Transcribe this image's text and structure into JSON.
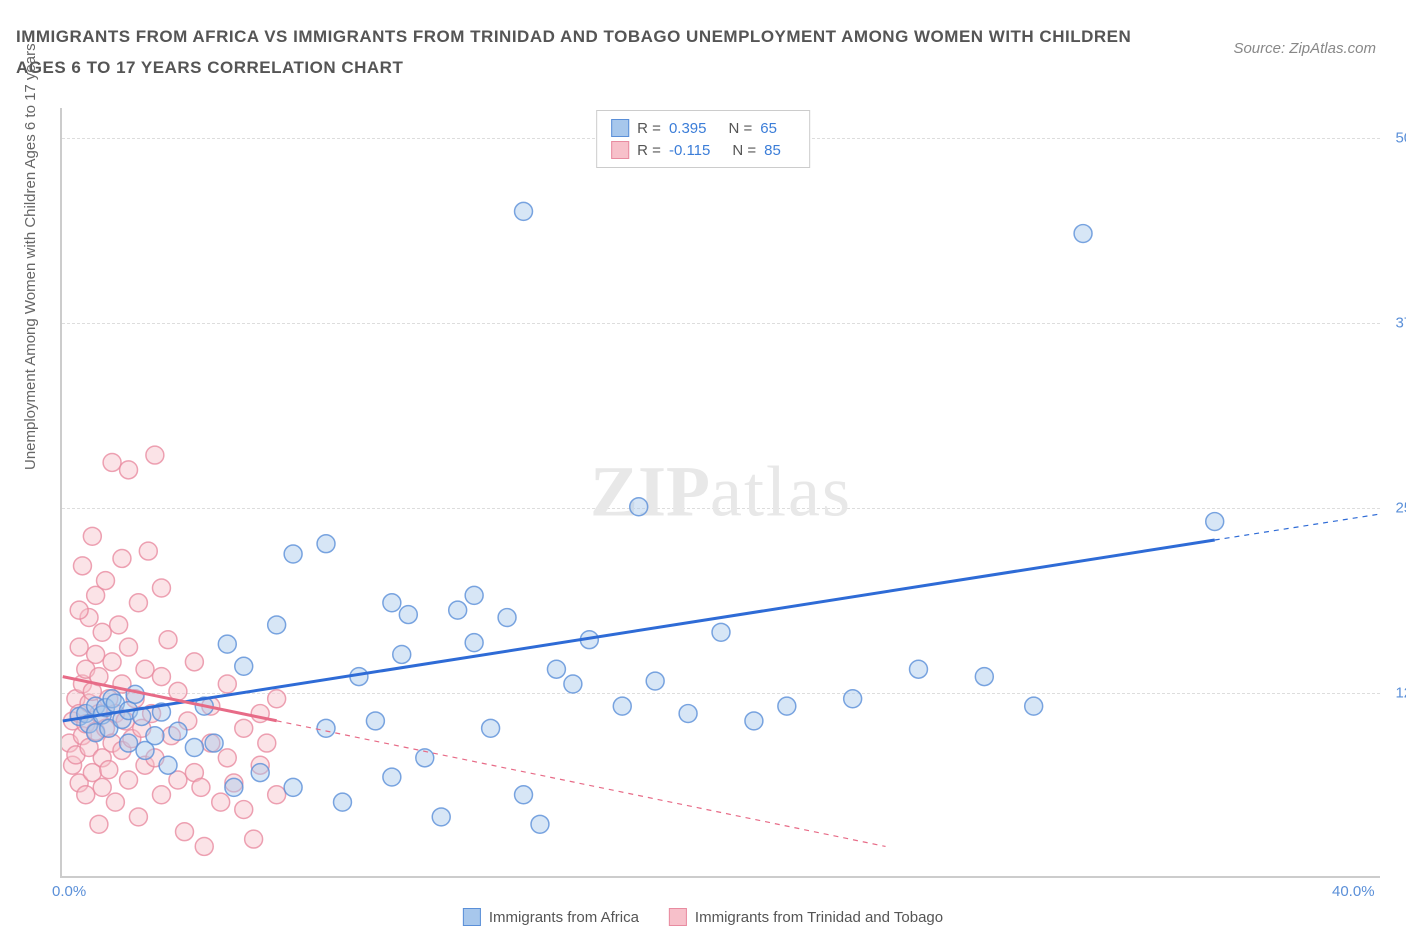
{
  "title": "IMMIGRANTS FROM AFRICA VS IMMIGRANTS FROM TRINIDAD AND TOBAGO UNEMPLOYMENT AMONG WOMEN WITH CHILDREN AGES 6 TO 17 YEARS CORRELATION CHART",
  "source": "Source: ZipAtlas.com",
  "yaxis_label": "Unemployment Among Women with Children Ages 6 to 17 years",
  "watermark": {
    "bold": "ZIP",
    "light": "atlas"
  },
  "chart": {
    "type": "scatter",
    "background_color": "#ffffff",
    "grid_color": "#dddddd",
    "axis_color": "#cccccc",
    "tick_color": "#5a8fd8",
    "label_color": "#666666",
    "title_color": "#555555",
    "title_fontsize": 17,
    "label_fontsize": 15,
    "tick_fontsize": 15,
    "xlim": [
      0,
      40
    ],
    "ylim": [
      0,
      52
    ],
    "yticks": [
      12.5,
      25.0,
      37.5,
      50.0
    ],
    "ytick_labels": [
      "12.5%",
      "25.0%",
      "37.5%",
      "50.0%"
    ],
    "xticks": [
      0,
      40
    ],
    "xtick_labels": [
      "0.0%",
      "40.0%"
    ],
    "marker_radius": 9,
    "marker_opacity": 0.45,
    "trendline_width": 3,
    "trendline_dash_width": 1.2
  },
  "series": [
    {
      "name": "Immigrants from Africa",
      "fill_color": "#a7c7ec",
      "stroke_color": "#5a8fd8",
      "line_color": "#2e6bd6",
      "R": 0.395,
      "N": 65,
      "trendline": {
        "x1": 0,
        "y1": 10.5,
        "x2": 40,
        "y2": 24.5,
        "solid_until_x": 35
      },
      "points": [
        [
          0.5,
          10.8
        ],
        [
          0.7,
          11.0
        ],
        [
          0.8,
          10.3
        ],
        [
          1.0,
          11.5
        ],
        [
          1.0,
          9.7
        ],
        [
          1.2,
          10.9
        ],
        [
          1.3,
          11.4
        ],
        [
          1.4,
          10.0
        ],
        [
          1.5,
          12.0
        ],
        [
          1.6,
          11.7
        ],
        [
          1.8,
          10.6
        ],
        [
          2.0,
          11.2
        ],
        [
          2.0,
          9.0
        ],
        [
          2.2,
          12.3
        ],
        [
          2.4,
          10.8
        ],
        [
          2.5,
          8.5
        ],
        [
          2.8,
          9.5
        ],
        [
          3.0,
          11.1
        ],
        [
          3.2,
          7.5
        ],
        [
          3.5,
          9.8
        ],
        [
          4.0,
          8.7
        ],
        [
          4.3,
          11.5
        ],
        [
          4.6,
          9.0
        ],
        [
          5.0,
          15.7
        ],
        [
          5.2,
          6.0
        ],
        [
          5.5,
          14.2
        ],
        [
          6.0,
          7.0
        ],
        [
          6.5,
          17.0
        ],
        [
          7.0,
          21.8
        ],
        [
          7.0,
          6.0
        ],
        [
          8.0,
          22.5
        ],
        [
          8.0,
          10.0
        ],
        [
          8.5,
          5.0
        ],
        [
          9.0,
          13.5
        ],
        [
          9.5,
          10.5
        ],
        [
          10.0,
          18.5
        ],
        [
          10.3,
          15.0
        ],
        [
          10.5,
          17.7
        ],
        [
          11.0,
          8.0
        ],
        [
          11.5,
          4.0
        ],
        [
          12.0,
          18.0
        ],
        [
          12.5,
          19.0
        ],
        [
          12.5,
          15.8
        ],
        [
          13.0,
          10.0
        ],
        [
          13.5,
          17.5
        ],
        [
          14.0,
          5.5
        ],
        [
          14.5,
          3.5
        ],
        [
          15.0,
          14.0
        ],
        [
          15.5,
          13.0
        ],
        [
          16.0,
          16.0
        ],
        [
          17.0,
          11.5
        ],
        [
          17.5,
          25.0
        ],
        [
          18.0,
          13.2
        ],
        [
          19.0,
          11.0
        ],
        [
          20.0,
          16.5
        ],
        [
          21.0,
          10.5
        ],
        [
          22.0,
          11.5
        ],
        [
          24.0,
          12.0
        ],
        [
          26.0,
          14.0
        ],
        [
          28.0,
          13.5
        ],
        [
          29.5,
          11.5
        ],
        [
          31.0,
          43.5
        ],
        [
          35.0,
          24.0
        ],
        [
          14.0,
          45.0
        ],
        [
          10.0,
          6.7
        ]
      ]
    },
    {
      "name": "Immigrants from Trinidad and Tobago",
      "fill_color": "#f7c0ca",
      "stroke_color": "#e88ba0",
      "line_color": "#e76b87",
      "R": -0.115,
      "N": 85,
      "trendline": {
        "x1": 0,
        "y1": 13.5,
        "x2": 25,
        "y2": 2.0,
        "solid_until_x": 6.5
      },
      "points": [
        [
          0.2,
          9.0
        ],
        [
          0.3,
          10.5
        ],
        [
          0.3,
          7.5
        ],
        [
          0.4,
          12.0
        ],
        [
          0.4,
          8.2
        ],
        [
          0.5,
          15.5
        ],
        [
          0.5,
          11.0
        ],
        [
          0.5,
          6.3
        ],
        [
          0.6,
          13.0
        ],
        [
          0.6,
          9.5
        ],
        [
          0.6,
          21.0
        ],
        [
          0.7,
          10.3
        ],
        [
          0.7,
          14.0
        ],
        [
          0.7,
          5.5
        ],
        [
          0.8,
          8.7
        ],
        [
          0.8,
          11.7
        ],
        [
          0.8,
          17.5
        ],
        [
          0.9,
          23.0
        ],
        [
          0.9,
          7.0
        ],
        [
          0.9,
          12.5
        ],
        [
          1.0,
          15.0
        ],
        [
          1.0,
          9.8
        ],
        [
          1.0,
          19.0
        ],
        [
          1.1,
          11.0
        ],
        [
          1.1,
          3.5
        ],
        [
          1.1,
          13.5
        ],
        [
          1.2,
          8.0
        ],
        [
          1.2,
          16.5
        ],
        [
          1.2,
          6.0
        ],
        [
          1.3,
          10.0
        ],
        [
          1.3,
          20.0
        ],
        [
          1.4,
          12.0
        ],
        [
          1.4,
          7.2
        ],
        [
          1.5,
          14.5
        ],
        [
          1.5,
          9.0
        ],
        [
          1.5,
          28.0
        ],
        [
          1.6,
          11.0
        ],
        [
          1.6,
          5.0
        ],
        [
          1.7,
          17.0
        ],
        [
          1.8,
          8.5
        ],
        [
          1.8,
          13.0
        ],
        [
          1.9,
          10.5
        ],
        [
          2.0,
          15.5
        ],
        [
          2.0,
          6.5
        ],
        [
          2.0,
          27.5
        ],
        [
          2.1,
          9.3
        ],
        [
          2.2,
          12.0
        ],
        [
          2.3,
          18.5
        ],
        [
          2.3,
          4.0
        ],
        [
          2.4,
          10.0
        ],
        [
          2.5,
          14.0
        ],
        [
          2.5,
          7.5
        ],
        [
          2.6,
          22.0
        ],
        [
          2.7,
          11.0
        ],
        [
          2.8,
          8.0
        ],
        [
          3.0,
          13.5
        ],
        [
          3.0,
          5.5
        ],
        [
          3.2,
          16.0
        ],
        [
          3.3,
          9.5
        ],
        [
          3.5,
          6.5
        ],
        [
          3.5,
          12.5
        ],
        [
          3.7,
          3.0
        ],
        [
          3.8,
          10.5
        ],
        [
          4.0,
          7.0
        ],
        [
          4.0,
          14.5
        ],
        [
          4.2,
          6.0
        ],
        [
          4.3,
          2.0
        ],
        [
          4.5,
          9.0
        ],
        [
          4.5,
          11.5
        ],
        [
          4.8,
          5.0
        ],
        [
          5.0,
          8.0
        ],
        [
          5.0,
          13.0
        ],
        [
          5.2,
          6.3
        ],
        [
          5.5,
          10.0
        ],
        [
          5.5,
          4.5
        ],
        [
          5.8,
          2.5
        ],
        [
          6.0,
          11.0
        ],
        [
          6.0,
          7.5
        ],
        [
          6.2,
          9.0
        ],
        [
          6.5,
          5.5
        ],
        [
          6.5,
          12.0
        ],
        [
          2.8,
          28.5
        ],
        [
          1.8,
          21.5
        ],
        [
          0.5,
          18.0
        ],
        [
          3.0,
          19.5
        ]
      ]
    }
  ],
  "legend": {
    "items": [
      {
        "label": "Immigrants from Africa",
        "fill": "#a7c7ec",
        "stroke": "#5a8fd8"
      },
      {
        "label": "Immigrants from Trinidad and Tobago",
        "fill": "#f7c0ca",
        "stroke": "#e88ba0"
      }
    ]
  }
}
